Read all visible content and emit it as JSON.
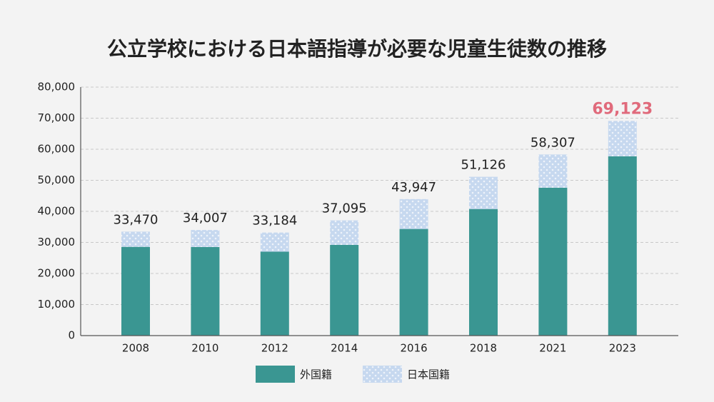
{
  "chart_data": {
    "type": "stacked_bar",
    "title": "公立学校における日本語指導が必要な児童生徒数の推移",
    "categories": [
      "2008",
      "2010",
      "2012",
      "2014",
      "2016",
      "2018",
      "2021",
      "2023"
    ],
    "series": [
      {
        "name": "外国籍",
        "color": "#3a9692",
        "values": [
          28575,
          28511,
          27013,
          29198,
          34335,
          40755,
          47619,
          57718
        ]
      },
      {
        "name": "日本国籍",
        "color": "#c6d8ef",
        "values": [
          4895,
          5496,
          6171,
          7897,
          9612,
          10371,
          10688,
          11405
        ]
      }
    ],
    "total_labels": [
      "33,470",
      "34,007",
      "33,184",
      "37,095",
      "43,947",
      "51,126",
      "58,307",
      "69,123"
    ],
    "highlight": {
      "index": 7,
      "color": "#e06a7b"
    },
    "ylim": [
      0,
      80000
    ],
    "yticks": [
      0,
      {
        "value": 10000,
        "label": "10,000"
      },
      {
        "value": 20000,
        "label": "20,000"
      },
      {
        "value": 30000,
        "label": "30,000"
      },
      {
        "value": 40000,
        "label": "40,000"
      },
      {
        "value": 50000,
        "label": "50,000"
      },
      {
        "value": 60000,
        "label": "60,000"
      },
      {
        "value": 70000,
        "label": "70,000"
      },
      {
        "value": 80000,
        "label": "80,000"
      }
    ],
    "grid": true
  }
}
